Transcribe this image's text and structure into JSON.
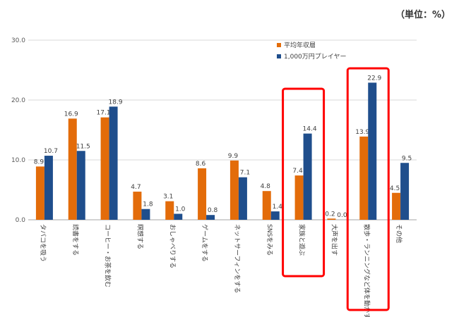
{
  "chart_data": {
    "type": "bar",
    "unit": "（単位：%）",
    "ylim": [
      0,
      30
    ],
    "yticks": [
      "0.0",
      "10.0",
      "20.0",
      "30.0"
    ],
    "grid": true,
    "legend_position": "top-right",
    "categories": [
      "タバコを吸う",
      "読書をする",
      "コーヒー・お茶を飲む",
      "瞑想する",
      "おしゃべりする",
      "ゲームをする",
      "ネットサーフィンをする",
      "SNSをみる",
      "家族と遊ぶ",
      "大声を出す",
      "散歩・ランニングなど体を動かす",
      "その他"
    ],
    "series": [
      {
        "name": "平均年収層",
        "color": "#E36C0A",
        "values": [
          8.9,
          16.9,
          17.1,
          4.7,
          3.1,
          8.6,
          9.9,
          4.8,
          7.4,
          0.2,
          13.9,
          4.5
        ],
        "labels": [
          "8.9",
          "16.9",
          "17.1",
          "4.7",
          "3.1",
          "8.6",
          "9.9",
          "4.8",
          "7.4",
          "0.2",
          "13.9",
          "4.5"
        ]
      },
      {
        "name": "1,000万円プレイヤー",
        "color": "#1F4E8C",
        "values": [
          10.7,
          11.5,
          18.9,
          1.8,
          1.0,
          0.8,
          7.1,
          1.4,
          14.4,
          0.0,
          22.9,
          9.5
        ],
        "labels": [
          "10.7",
          "11.5",
          "18.9",
          "1.8",
          "1.0",
          "0.8",
          "7.1",
          "1.4",
          "14.4",
          "0.0",
          "22.9",
          "9.5"
        ]
      }
    ],
    "highlighted_categories": [
      8,
      10
    ],
    "highlight_color": "#FF0000"
  }
}
